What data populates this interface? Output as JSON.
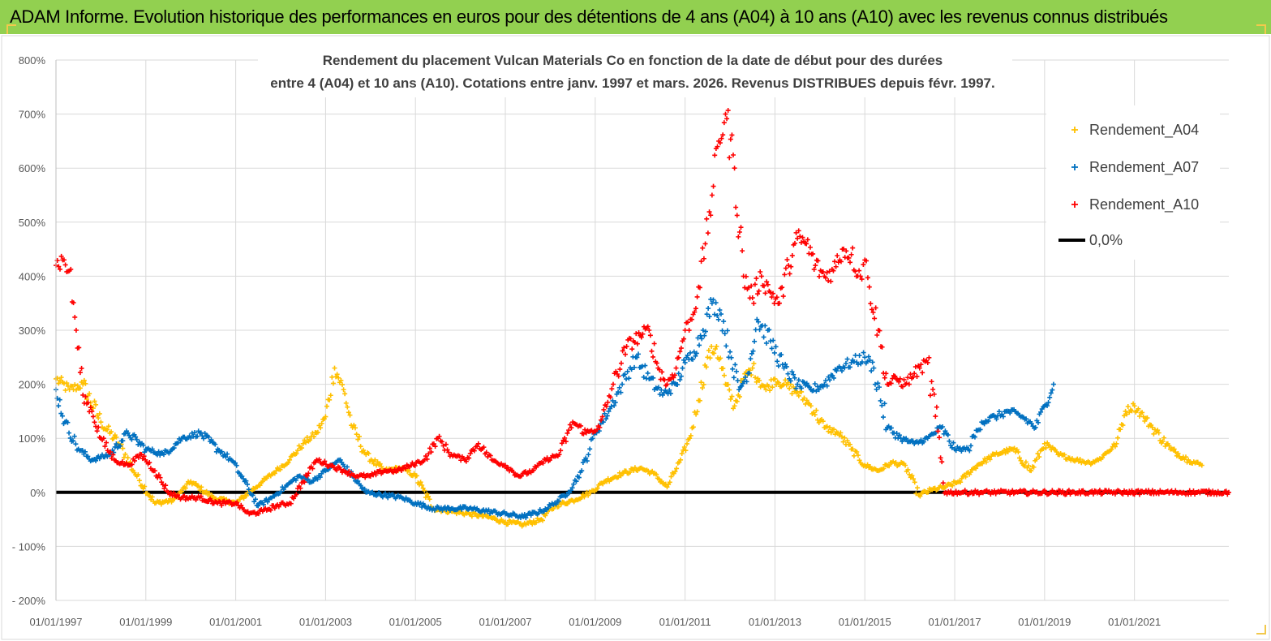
{
  "header": {
    "title": "ADAM Informe. Evolution historique des performances en euros pour des détentions de 4 ans (A04) à 10 ans (A10) avec les revenus connus distribués",
    "background": "#92d050"
  },
  "chart_data": {
    "type": "scatter",
    "title_line1": "Rendement du placement Vulcan Materials Co en fonction de la date de début pour des durées",
    "title_line2": "entre 4 (A04) et 10 ans (A10).  Cotations entre janv. 1997 et mars. 2026. Revenus DISTRIBUES depuis févr. 1997.",
    "xlabel": "",
    "ylabel": "",
    "x_range": [
      1997.0,
      2023.1
    ],
    "ylim": [
      -200,
      800
    ],
    "y_ticks": [
      {
        "value": 800,
        "label": "800%"
      },
      {
        "value": 700,
        "label": "700%"
      },
      {
        "value": 600,
        "label": "600%"
      },
      {
        "value": 500,
        "label": "500%"
      },
      {
        "value": 400,
        "label": "400%"
      },
      {
        "value": 300,
        "label": "300%"
      },
      {
        "value": 200,
        "label": "200%"
      },
      {
        "value": 100,
        "label": "100%"
      },
      {
        "value": 0,
        "label": "0%"
      },
      {
        "value": -100,
        "label": "- 100%"
      },
      {
        "value": -200,
        "label": "- 200%"
      }
    ],
    "x_ticks": [
      {
        "value": 1997,
        "label": "01/01/1997"
      },
      {
        "value": 1999,
        "label": "01/01/1999"
      },
      {
        "value": 2001,
        "label": "01/01/2001"
      },
      {
        "value": 2003,
        "label": "01/01/2003"
      },
      {
        "value": 2005,
        "label": "01/01/2005"
      },
      {
        "value": 2007,
        "label": "01/01/2007"
      },
      {
        "value": 2009,
        "label": "01/01/2009"
      },
      {
        "value": 2011,
        "label": "01/01/2011"
      },
      {
        "value": 2013,
        "label": "01/01/2013"
      },
      {
        "value": 2015,
        "label": "01/01/2015"
      },
      {
        "value": 2017,
        "label": "01/01/2017"
      },
      {
        "value": 2019,
        "label": "01/01/2019"
      },
      {
        "value": 2021,
        "label": "01/01/2021"
      }
    ],
    "grid": true,
    "legend_position": "right",
    "series": [
      {
        "name": "Rendement_A04",
        "color": "#ffc000",
        "marker": "+",
        "x": [
          1997.0,
          1997.3,
          1997.6,
          1998.0,
          1998.4,
          1998.8,
          1999.2,
          1999.6,
          2000.0,
          2000.5,
          2001.0,
          2001.3,
          2001.6,
          2001.9,
          2002.2,
          2002.5,
          2002.8,
          2003.0,
          2003.2,
          2003.4,
          2003.6,
          2003.9,
          2004.3,
          2004.7,
          2005.0,
          2005.4,
          2005.8,
          2006.2,
          2006.6,
          2007.0,
          2007.4,
          2007.8,
          2008.1,
          2008.5,
          2008.9,
          2009.2,
          2009.6,
          2010.0,
          2010.3,
          2010.6,
          2010.9,
          2011.1,
          2011.3,
          2011.5,
          2011.7,
          2011.9,
          2012.1,
          2012.3,
          2012.5,
          2012.8,
          2013.0,
          2013.2,
          2013.5,
          2013.8,
          2014.1,
          2014.4,
          2014.7,
          2015.0,
          2015.3,
          2015.6,
          2015.9,
          2016.2,
          2016.5,
          2016.8,
          2017.1,
          2017.5,
          2017.9,
          2018.3,
          2018.7,
          2019.0,
          2019.3,
          2019.7,
          2020.0,
          2020.2,
          2020.4,
          2020.6,
          2020.8,
          2021.0,
          2021.2,
          2021.4,
          2021.8,
          2022.2,
          2022.5
        ],
        "y": [
          210,
          190,
          200,
          130,
          90,
          30,
          -20,
          -15,
          20,
          -10,
          -20,
          0,
          20,
          40,
          60,
          90,
          110,
          140,
          230,
          190,
          120,
          70,
          40,
          45,
          30,
          -30,
          -35,
          -40,
          -45,
          -55,
          -60,
          -50,
          -25,
          -15,
          0,
          20,
          35,
          45,
          35,
          10,
          60,
          100,
          170,
          250,
          270,
          200,
          160,
          210,
          230,
          190,
          210,
          200,
          185,
          160,
          120,
          110,
          80,
          50,
          40,
          55,
          50,
          -5,
          5,
          10,
          20,
          50,
          70,
          80,
          40,
          90,
          70,
          60,
          55,
          60,
          75,
          90,
          150,
          160,
          140,
          120,
          80,
          60,
          50
        ]
      },
      {
        "name": "Rendement_A07",
        "color": "#0070c0",
        "marker": "+",
        "x": [
          1997.0,
          1997.2,
          1997.5,
          1997.8,
          1998.2,
          1998.6,
          1999.0,
          1999.4,
          1999.8,
          2000.2,
          2000.6,
          2000.9,
          2001.2,
          2001.5,
          2001.8,
          2002.1,
          2002.4,
          2002.7,
          2003.0,
          2003.3,
          2003.6,
          2003.9,
          2004.3,
          2004.7,
          2005.0,
          2005.4,
          2005.8,
          2006.2,
          2006.6,
          2007.0,
          2007.4,
          2007.8,
          2008.1,
          2008.4,
          2008.7,
          2009.0,
          2009.3,
          2009.6,
          2009.9,
          2010.2,
          2010.5,
          2010.8,
          2011.0,
          2011.2,
          2011.4,
          2011.6,
          2011.8,
          2012.0,
          2012.2,
          2012.4,
          2012.6,
          2012.9,
          2013.2,
          2013.5,
          2013.8,
          2014.1,
          2014.4,
          2014.7,
          2015.0,
          2015.2,
          2015.5,
          2015.8,
          2016.1,
          2016.4,
          2016.7,
          2017.0,
          2017.3,
          2017.6,
          2017.9,
          2018.2,
          2018.5,
          2018.8,
          2019.0,
          2019.2
        ],
        "y": [
          190,
          130,
          80,
          60,
          70,
          110,
          80,
          70,
          100,
          110,
          80,
          60,
          20,
          -25,
          -10,
          10,
          30,
          20,
          40,
          60,
          30,
          0,
          -5,
          -10,
          -20,
          -30,
          -30,
          -30,
          -35,
          -40,
          -45,
          -35,
          -20,
          0,
          40,
          110,
          150,
          200,
          250,
          210,
          180,
          200,
          240,
          260,
          300,
          350,
          330,
          260,
          190,
          220,
          320,
          280,
          230,
          200,
          190,
          200,
          230,
          240,
          250,
          230,
          120,
          100,
          90,
          100,
          120,
          80,
          80,
          130,
          140,
          150,
          140,
          120,
          160,
          200
        ]
      },
      {
        "name": "Rendement_A10",
        "color": "#ff0000",
        "marker": "+",
        "x": [
          1997.0,
          1997.15,
          1997.3,
          1997.45,
          1997.6,
          1997.8,
          1998.0,
          1998.3,
          1998.6,
          1998.9,
          1999.2,
          1999.5,
          1999.8,
          2000.2,
          2000.6,
          2001.0,
          2001.3,
          2001.6,
          2001.9,
          2002.2,
          2002.5,
          2002.8,
          2003.1,
          2003.4,
          2003.7,
          2004.0,
          2004.3,
          2004.6,
          2004.9,
          2005.2,
          2005.5,
          2005.8,
          2006.1,
          2006.4,
          2006.7,
          2007.0,
          2007.3,
          2007.6,
          2007.9,
          2008.2,
          2008.5,
          2008.8,
          2009.1,
          2009.4,
          2009.7,
          2010.0,
          2010.2,
          2010.4,
          2010.6,
          2010.8,
          2011.0,
          2011.15,
          2011.3,
          2011.45,
          2011.6,
          2011.75,
          2011.9,
          2012.1,
          2012.3,
          2012.5,
          2012.7,
          2012.9,
          2013.1,
          2013.3,
          2013.5,
          2013.7,
          2013.9,
          2014.1,
          2014.3,
          2014.5,
          2014.7,
          2014.9,
          2015.0,
          2015.1,
          2015.3,
          2015.5,
          2015.7,
          2015.9,
          2016.1,
          2016.4,
          2016.8,
          2017.2,
          2017.6,
          2018.0,
          2018.4,
          2018.8,
          2019.2,
          2019.6,
          2020.0,
          2020.4,
          2020.8,
          2021.2,
          2021.6,
          2022.0,
          2022.4,
          2022.8,
          2023.1
        ],
        "y": [
          420,
          430,
          410,
          300,
          180,
          150,
          100,
          60,
          50,
          70,
          40,
          0,
          -10,
          -10,
          -20,
          -20,
          -40,
          -35,
          -25,
          -20,
          20,
          60,
          50,
          40,
          30,
          30,
          40,
          40,
          50,
          60,
          100,
          70,
          60,
          90,
          60,
          50,
          30,
          40,
          60,
          70,
          130,
          110,
          120,
          200,
          270,
          290,
          300,
          230,
          200,
          230,
          300,
          320,
          380,
          460,
          550,
          650,
          700,
          600,
          400,
          360,
          400,
          370,
          350,
          420,
          470,
          460,
          420,
          400,
          410,
          450,
          440,
          400,
          430,
          380,
          300,
          200,
          210,
          200,
          220,
          240,
          0,
          0,
          0,
          0,
          0,
          0,
          0,
          0,
          0,
          0,
          0,
          0,
          0,
          0,
          0,
          0,
          0
        ]
      }
    ],
    "reference_lines": [
      {
        "name": "0,0%",
        "value": 0,
        "color": "#000000"
      }
    ]
  }
}
